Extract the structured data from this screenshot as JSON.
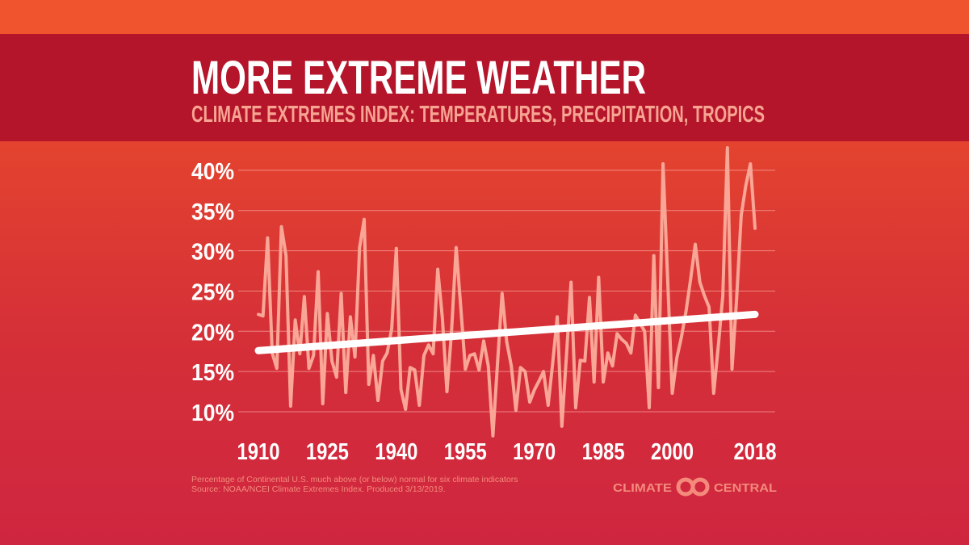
{
  "header": {
    "title": "MORE EXTREME WEATHER",
    "subtitle": "CLIMATE EXTREMES INDEX: TEMPERATURES, PRECIPITATION, TROPICS"
  },
  "footer": {
    "note": "Percentage of Continental U.S. much above (or below) normal for six climate indicators",
    "source": "Source: NOAA/NCEI Climate Extremes Index. Produced 3/13/2019.",
    "logo_text_left": "CLIMATE",
    "logo_text_right": "CENTRAL"
  },
  "colors": {
    "data_line": "#f9a697",
    "trend_line": "#ffffff",
    "title_band": "#b5152b",
    "subtitle": "#f7a592",
    "footer_text": "#f48a7c"
  },
  "chart_data": {
    "type": "line",
    "title": "MORE EXTREME WEATHER",
    "subtitle": "CLIMATE EXTREMES INDEX: TEMPERATURES, PRECIPITATION, TROPICS",
    "xlabel": "",
    "ylabel": "",
    "x_ticks": [
      "1910",
      "1925",
      "1940",
      "1955",
      "1970",
      "1985",
      "2000",
      "2018"
    ],
    "y_ticks": [
      "10%",
      "15%",
      "20%",
      "25%",
      "30%",
      "35%",
      "40%"
    ],
    "xlim": [
      1910,
      2018
    ],
    "ylim": [
      7,
      43
    ],
    "grid": "horizontal",
    "x_start": 1910,
    "values": [
      22.1,
      21.9,
      31.6,
      17.3,
      15.4,
      33,
      29.4,
      10.7,
      21.4,
      17.2,
      24.3,
      15.4,
      17,
      27.4,
      11,
      22.2,
      16.3,
      14.3,
      24.7,
      12.4,
      21.8,
      16.8,
      30.4,
      33.9,
      13.4,
      17,
      11.4,
      16.3,
      17.3,
      20.3,
      30.3,
      12.8,
      10.3,
      15.5,
      15.2,
      10.8,
      17,
      18.3,
      17.2,
      27.7,
      21.7,
      12.5,
      20,
      30.4,
      23,
      15.3,
      17,
      17.2,
      15.2,
      18.8,
      15.7,
      7,
      16,
      24.7,
      18.7,
      15.7,
      10.2,
      15.5,
      15,
      11.2,
      12.7,
      13.8,
      15,
      10.8,
      16,
      21.8,
      8.2,
      17,
      26.1,
      10.5,
      16.4,
      16.3,
      24.2,
      13.7,
      26.7,
      13.7,
      17.3,
      15.7,
      19.7,
      19,
      18.5,
      17.3,
      22,
      21,
      20,
      10.5,
      29.4,
      13,
      40.8,
      26.5,
      12.3,
      16.7,
      19.3,
      22.5,
      26.5,
      30.8,
      26.1,
      24.4,
      23,
      12.3,
      18,
      24.4,
      42.8,
      15.3,
      24,
      34.4,
      38.1,
      40.8,
      32.8
    ],
    "trend": {
      "start": [
        1910,
        17.6
      ],
      "end": [
        2018,
        22.1
      ]
    }
  }
}
